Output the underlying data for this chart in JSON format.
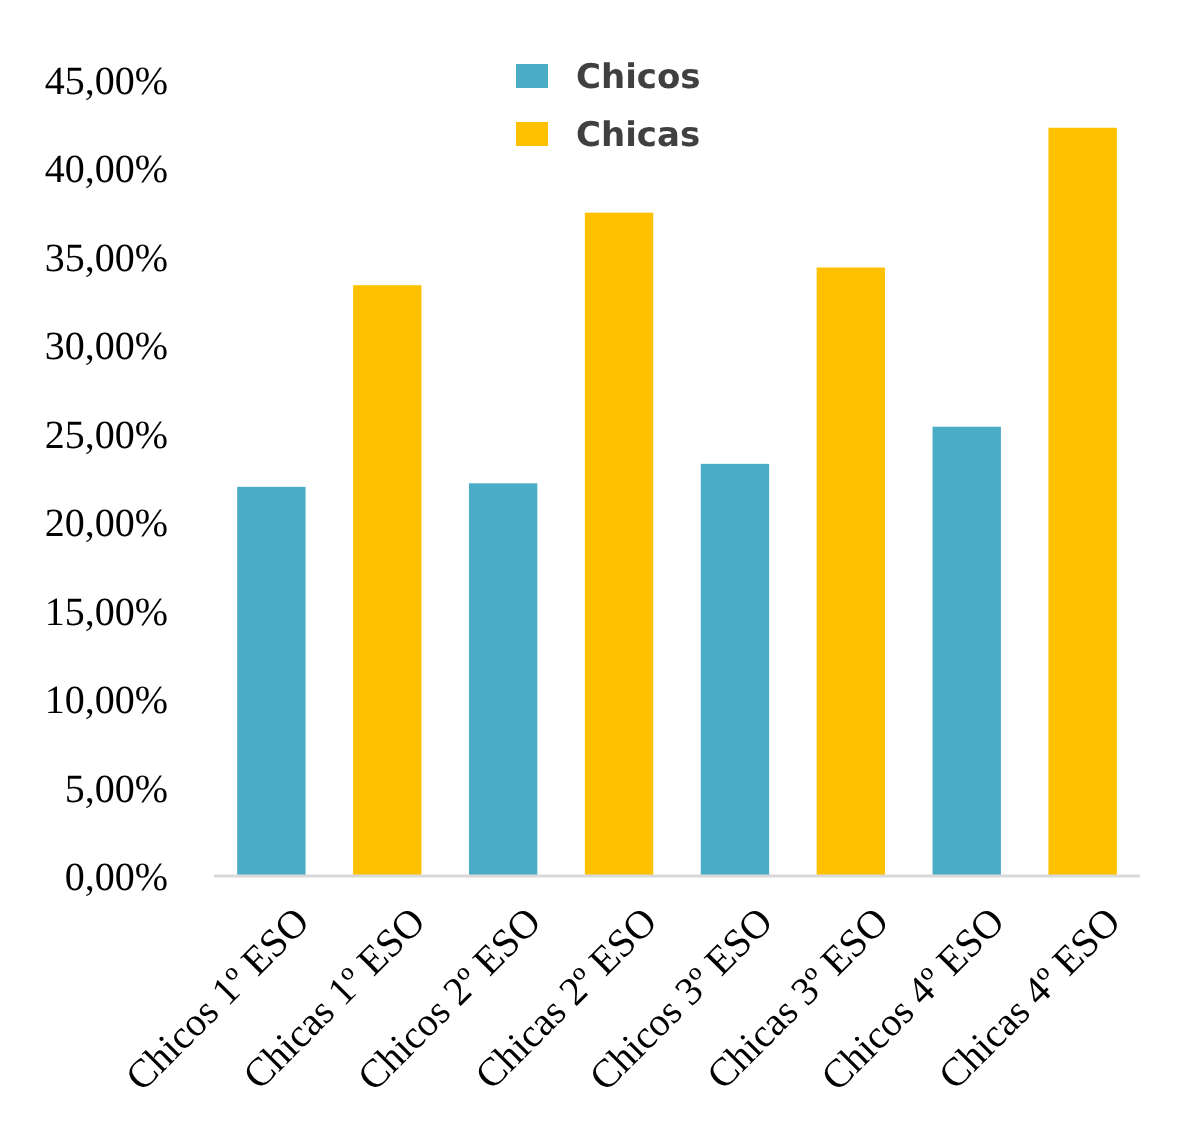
{
  "chart_data": {
    "type": "bar",
    "categories": [
      "Chicos 1º ESO",
      "Chicas 1º ESO",
      "Chicos 2º ESO",
      "Chicas 2º ESO",
      "Chicos 3º ESO",
      "Chicas 3º ESO",
      "Chicos 4º ESO",
      "Chicas 4º ESO"
    ],
    "series": [
      {
        "name": "Chicos",
        "color": "#4bacc6",
        "values": [
          22.0,
          null,
          22.2,
          null,
          23.3,
          null,
          25.4,
          null
        ]
      },
      {
        "name": "Chicas",
        "color": "#ffc000",
        "values": [
          null,
          33.4,
          null,
          37.5,
          null,
          34.4,
          null,
          42.3
        ]
      }
    ],
    "ylim": [
      0,
      45
    ],
    "yticks": [
      {
        "value": 0,
        "label": "0,00%"
      },
      {
        "value": 5,
        "label": "5,00%"
      },
      {
        "value": 10,
        "label": "10,00%"
      },
      {
        "value": 15,
        "label": "15,00%"
      },
      {
        "value": 20,
        "label": "20,00%"
      },
      {
        "value": 25,
        "label": "25,00%"
      },
      {
        "value": 30,
        "label": "30,00%"
      },
      {
        "value": 35,
        "label": "35,00%"
      },
      {
        "value": 40,
        "label": "40,00%"
      },
      {
        "value": 45,
        "label": "45,00%"
      }
    ],
    "grid": false,
    "legend": "top"
  }
}
